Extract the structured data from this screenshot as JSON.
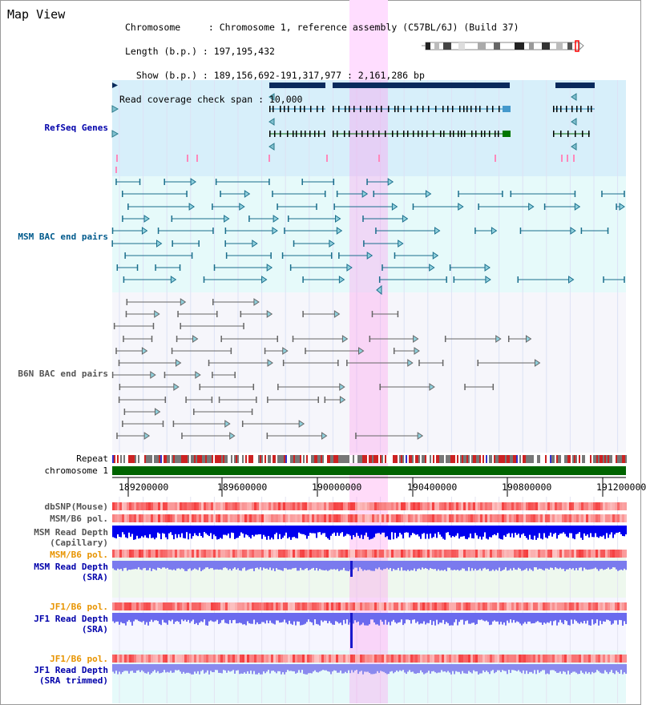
{
  "view_title": "Map View",
  "header": {
    "chromosome_line": "Chromosome     : Chromosome 1, reference assembly (C57BL/6J) (Build 37)",
    "length_line": "Length (b.p.) : 197,195,432",
    "show_line": "  Show (b.p.) : 189,156,692-191,317,977 : 2,161,286 bp",
    "coverage_line": "Read coverage check span : 10,000"
  },
  "tracks": {
    "refseq": "RefSeq Genes",
    "msm_bac": "MSM BAC end pairs",
    "b6n_bac": "B6N BAC end pairs",
    "repeat": "Repeat",
    "chromosome": "chromosome 1",
    "dbsnp": "dbSNP(Mouse)",
    "msm_b6_pol_1": "MSM/B6 pol.",
    "msm_read_depth_cap_1": "MSM Read Depth",
    "msm_read_depth_cap_2": "(Capillary)",
    "msm_b6_pol_2": "MSM/B6 pol.",
    "msm_read_depth_sra_1": "MSM Read Depth",
    "msm_read_depth_sra_2": "(SRA)",
    "jf1_b6_pol_1": "JF1/B6 pol.",
    "jf1_read_depth_sra_1": "JF1 Read Depth",
    "jf1_read_depth_sra_2": "(SRA)",
    "jf1_b6_pol_2": "JF1/B6 pol.",
    "jf1_read_depth_trim_1": "JF1 Read Depth",
    "jf1_read_depth_trim_2": "(SRA trimmed)"
  },
  "ruler_ticks": [
    "189200000",
    "189600000",
    "190000000",
    "190400000",
    "190800000",
    "191200000"
  ],
  "colors": {
    "refseq_label": "#0000aa",
    "msm_label": "#005a8c",
    "b6n_label": "#555555",
    "orange_label": "#e89400",
    "blue_label": "#0000aa",
    "highlight": "#ffccff",
    "chromosome_bar": "#006400",
    "read_depth_dark": "#0000ff",
    "read_depth_light": "#7777ee"
  }
}
